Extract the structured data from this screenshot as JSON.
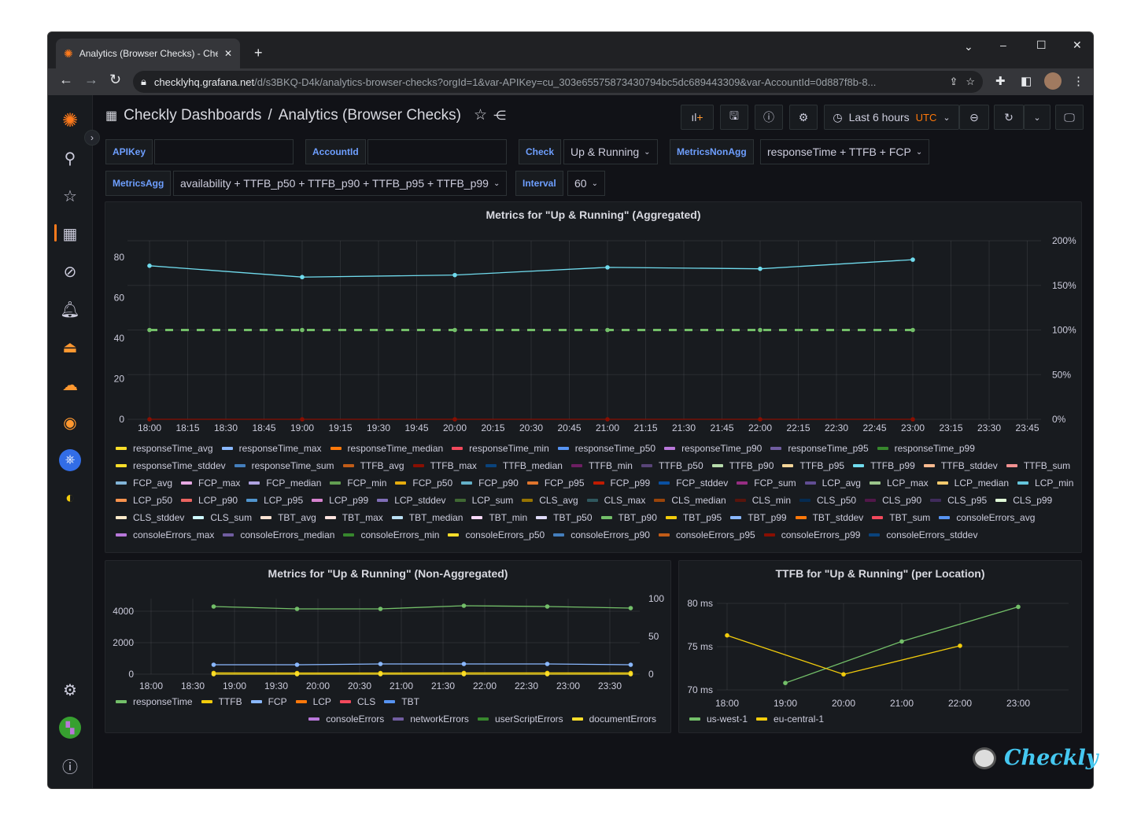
{
  "browser": {
    "tab_title": "Analytics (Browser Checks) - Checkly",
    "url_host": "checklyhq.grafana.net",
    "url_path": "/d/s3BKQ-D4k/analytics-browser-checks?orgId=1&var-APIKey=cu_303e65575873430794bc5dc689443309&var-AccountId=0d887f8b-8..."
  },
  "header": {
    "dashboards": "Checkly Dashboards",
    "separator": "/",
    "title": "Analytics (Browser Checks)",
    "time_range": "Last 6 hours",
    "timezone": "UTC"
  },
  "colors": {
    "accent": "#ff8833",
    "link": "#6e9fff",
    "utc": "#ff780a"
  },
  "variables": [
    {
      "label": "APIKey",
      "value": ""
    },
    {
      "label": "AccountId",
      "value": ""
    },
    {
      "label": "Check",
      "value": "Up & Running"
    },
    {
      "label": "MetricsNonAgg",
      "value": "responseTime + TTFB + FCP"
    },
    {
      "label": "MetricsAgg",
      "value": "availability + TTFB_p50 + TTFB_p90 + TTFB_p95 + TTFB_p99"
    },
    {
      "label": "Interval",
      "value": "60"
    }
  ],
  "sidebar": [
    "grafana-logo",
    "search-icon",
    "star-icon",
    "dashboards-icon",
    "explore-icon",
    "alerting-icon",
    "oncall-icon",
    "ml-icon",
    "incident-icon",
    "kubernetes-icon",
    "synthetic-icon",
    "gear-icon",
    "user-avatar",
    "help-icon"
  ],
  "panels": {
    "aggregated": {
      "title": "Metrics for \"Up & Running\" (Aggregated)",
      "legend": [
        [
          "responseTime_avg",
          "#FADE2A"
        ],
        [
          "responseTime_max",
          "#8AB8FF"
        ],
        [
          "responseTime_median",
          "#FF780A"
        ],
        [
          "responseTime_min",
          "#F2495C"
        ],
        [
          "responseTime_p50",
          "#5794F2"
        ],
        [
          "responseTime_p90",
          "#B877D9"
        ],
        [
          "responseTime_p95",
          "#705DA0"
        ],
        [
          "responseTime_p99",
          "#37872D"
        ],
        [
          "responseTime_stddev",
          "#FADE2A"
        ],
        [
          "responseTime_sum",
          "#447EBC"
        ],
        [
          "TTFB_avg",
          "#C15C17"
        ],
        [
          "TTFB_max",
          "#890F02"
        ],
        [
          "TTFB_median",
          "#0A437C"
        ],
        [
          "TTFB_min",
          "#6D1F62"
        ],
        [
          "TTFB_p50",
          "#584477"
        ],
        [
          "TTFB_p90",
          "#B7DBAB"
        ],
        [
          "TTFB_p95",
          "#F4D598"
        ],
        [
          "TTFB_p99",
          "#70DBED"
        ],
        [
          "TTFB_stddev",
          "#F9BA8F"
        ],
        [
          "TTFB_sum",
          "#F29191"
        ],
        [
          "FCP_avg",
          "#82B5D8"
        ],
        [
          "FCP_max",
          "#E5A8E2"
        ],
        [
          "FCP_median",
          "#AEA2E0"
        ],
        [
          "FCP_min",
          "#629E51"
        ],
        [
          "FCP_p50",
          "#E5AC0E"
        ],
        [
          "FCP_p90",
          "#64B0C8"
        ],
        [
          "FCP_p95",
          "#E0752D"
        ],
        [
          "FCP_p99",
          "#BF1B00"
        ],
        [
          "FCP_stddev",
          "#0A50A1"
        ],
        [
          "FCP_sum",
          "#962D82"
        ],
        [
          "LCP_avg",
          "#614D93"
        ],
        [
          "LCP_max",
          "#9AC48A"
        ],
        [
          "LCP_median",
          "#F2C96D"
        ],
        [
          "LCP_min",
          "#65C5DB"
        ],
        [
          "LCP_p50",
          "#F9934E"
        ],
        [
          "LCP_p90",
          "#EA6460"
        ],
        [
          "LCP_p95",
          "#5195CE"
        ],
        [
          "LCP_p99",
          "#D683CE"
        ],
        [
          "LCP_stddev",
          "#806EB7"
        ],
        [
          "LCP_sum",
          "#3F6833"
        ],
        [
          "CLS_avg",
          "#967302"
        ],
        [
          "CLS_max",
          "#2F575E"
        ],
        [
          "CLS_median",
          "#99440A"
        ],
        [
          "CLS_min",
          "#58140C"
        ],
        [
          "CLS_p50",
          "#052B51"
        ],
        [
          "CLS_p90",
          "#511749"
        ],
        [
          "CLS_p95",
          "#3F2B5B"
        ],
        [
          "CLS_p99",
          "#E0F9D7"
        ],
        [
          "CLS_stddev",
          "#FCEACA"
        ],
        [
          "CLS_sum",
          "#CFFAFF"
        ],
        [
          "TBT_avg",
          "#F9E2D2"
        ],
        [
          "TBT_max",
          "#FCE2DE"
        ],
        [
          "TBT_median",
          "#BADFF4"
        ],
        [
          "TBT_min",
          "#F9D9F9"
        ],
        [
          "TBT_p50",
          "#DEDAF7"
        ],
        [
          "TBT_p90",
          "#73BF69"
        ],
        [
          "TBT_p95",
          "#F2CC0C"
        ],
        [
          "TBT_p99",
          "#8AB8FF"
        ],
        [
          "TBT_stddev",
          "#FF780A"
        ],
        [
          "TBT_sum",
          "#F2495C"
        ],
        [
          "consoleErrors_avg",
          "#5794F2"
        ],
        [
          "consoleErrors_max",
          "#B877D9"
        ],
        [
          "consoleErrors_median",
          "#705DA0"
        ],
        [
          "consoleErrors_min",
          "#37872D"
        ],
        [
          "consoleErrors_p50",
          "#FADE2A"
        ],
        [
          "consoleErrors_p90",
          "#447EBC"
        ],
        [
          "consoleErrors_p95",
          "#C15C17"
        ],
        [
          "consoleErrors_p99",
          "#890F02"
        ],
        [
          "consoleErrors_stddev",
          "#0A437C"
        ]
      ]
    },
    "non_aggregated": {
      "title": "Metrics for \"Up & Running\" (Non-Aggregated)",
      "legend": [
        [
          "responseTime",
          "#73BF69"
        ],
        [
          "TTFB",
          "#F2CC0C"
        ],
        [
          "FCP",
          "#8AB8FF"
        ],
        [
          "LCP",
          "#FF780A"
        ],
        [
          "CLS",
          "#F2495C"
        ],
        [
          "TBT",
          "#5794F2"
        ]
      ],
      "legend2": [
        [
          "consoleErrors",
          "#B877D9"
        ],
        [
          "networkErrors",
          "#705DA0"
        ],
        [
          "userScriptErrors",
          "#37872D"
        ],
        [
          "documentErrors",
          "#FADE2A"
        ]
      ]
    },
    "per_location": {
      "title": "TTFB for \"Up & Running\" (per Location)",
      "legend": [
        [
          "us-west-1",
          "#73BF69"
        ],
        [
          "eu-central-1",
          "#F2CC0C"
        ]
      ]
    }
  },
  "branding": {
    "logo_text": "Checkly"
  },
  "chart_data": [
    {
      "type": "line",
      "x_ticks": [
        "18:00",
        "18:15",
        "18:30",
        "18:45",
        "19:00",
        "19:15",
        "19:30",
        "19:45",
        "20:00",
        "20:15",
        "20:30",
        "20:45",
        "21:00",
        "21:15",
        "21:30",
        "21:45",
        "22:00",
        "22:15",
        "22:30",
        "22:45",
        "23:00",
        "23:15",
        "23:30",
        "23:45"
      ],
      "y_ticks": [
        "0",
        "20",
        "40",
        "60",
        "80"
      ],
      "y2_ticks": [
        "0%",
        "50%",
        "100%",
        "150%",
        "200%"
      ],
      "ylim": [
        0,
        88
      ],
      "y2lim": [
        0,
        200
      ],
      "grid": true,
      "legend_placement": "bottom",
      "series": [
        {
          "color": "#70DBED",
          "axis": "left",
          "x": [
            "18:00",
            "19:00",
            "20:00",
            "21:00",
            "22:00",
            "23:00"
          ],
          "values": [
            75.8,
            70.2,
            71.2,
            75,
            74.3,
            78.8
          ]
        },
        {
          "color": "#73BF69",
          "axis": "right",
          "dashed": true,
          "x": [
            "18:00",
            "19:00",
            "20:00",
            "21:00",
            "22:00",
            "23:00"
          ],
          "values": [
            100,
            100,
            100,
            100,
            100,
            100
          ]
        },
        {
          "color": "#890F02",
          "axis": "left",
          "x": [
            "18:00",
            "19:00",
            "20:00",
            "21:00",
            "22:00",
            "23:00"
          ],
          "values": [
            0,
            0,
            0,
            0,
            0,
            0
          ]
        }
      ]
    },
    {
      "type": "line",
      "x_ticks": [
        "18:00",
        "18:30",
        "19:00",
        "19:30",
        "20:00",
        "20:30",
        "21:00",
        "21:30",
        "22:00",
        "22:30",
        "23:00",
        "23:30"
      ],
      "y_ticks": [
        "0",
        "2000",
        "4000"
      ],
      "y2_ticks": [
        "0",
        "50",
        "100"
      ],
      "ylim": [
        0,
        4900
      ],
      "y2lim": [
        0,
        100
      ],
      "grid": true,
      "legend_placement": "bottom",
      "series": [
        {
          "name": "responseTime",
          "color": "#73BF69",
          "axis": "left",
          "x": [
            "18:45",
            "19:45",
            "20:45",
            "21:45",
            "22:45",
            "23:45"
          ],
          "values": [
            4300,
            4150,
            4150,
            4350,
            4300,
            4200
          ]
        },
        {
          "name": "FCP",
          "color": "#8AB8FF",
          "axis": "left",
          "x": [
            "18:45",
            "19:45",
            "20:45",
            "21:45",
            "22:45",
            "23:45"
          ],
          "values": [
            600,
            600,
            650,
            650,
            650,
            600
          ]
        },
        {
          "name": "TTFB",
          "color": "#F2CC0C",
          "axis": "left",
          "x": [
            "18:45",
            "19:45",
            "20:45",
            "21:45",
            "22:45",
            "23:45"
          ],
          "values": [
            80,
            75,
            75,
            80,
            80,
            78
          ]
        },
        {
          "name": "documentErrors",
          "color": "#FADE2A",
          "axis": "right",
          "x": [
            "18:45",
            "19:45",
            "20:45",
            "21:45",
            "22:45",
            "23:45"
          ],
          "values": [
            0,
            0,
            0,
            0,
            0,
            0
          ]
        }
      ]
    },
    {
      "type": "line",
      "x_ticks": [
        "18:00",
        "19:00",
        "20:00",
        "21:00",
        "22:00",
        "23:00"
      ],
      "y_ticks": [
        "70 ms",
        "75 ms",
        "80 ms"
      ],
      "ylim": [
        69.5,
        80.5
      ],
      "grid": true,
      "legend_placement": "bottom",
      "series": [
        {
          "name": "us-west-1",
          "color": "#73BF69",
          "axis": "left",
          "x": [
            "19:00",
            "21:00",
            "23:00"
          ],
          "values": [
            70.8,
            75.6,
            79.6
          ]
        },
        {
          "name": "eu-central-1",
          "color": "#F2CC0C",
          "axis": "left",
          "x": [
            "18:00",
            "20:00",
            "22:00"
          ],
          "values": [
            76.3,
            71.8,
            75.1
          ]
        }
      ]
    }
  ]
}
